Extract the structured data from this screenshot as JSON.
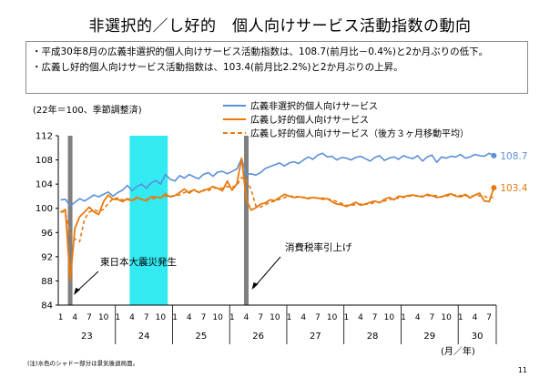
{
  "title": "非選択的／し好的　個人向けサービス活動指数の動向",
  "summary": [
    "・平成30年8月の広義非選択的個人向けサービス活動指数は、108.7(前月比－0.4%)と2か月ぶりの低下。",
    "・広義し好的個人向けサービス活動指数は、103.4(前月比2.2%)と2か月ぶりの上昇。"
  ],
  "footnote": "(注)水色のシャドー部分は景気後退局面。",
  "page_number": "11",
  "chart_data": {
    "type": "line",
    "note": "(22年＝100、季節調整済)",
    "ylim": [
      84,
      112
    ],
    "yticks": [
      "84",
      "88",
      "92",
      "96",
      "100",
      "104",
      "108",
      "112"
    ],
    "x_unit": "(月／年)",
    "year_labels": [
      "23",
      "24",
      "25",
      "26",
      "27",
      "28",
      "29",
      "30"
    ],
    "month_tick_labels": [
      "1",
      "4",
      "7",
      "10"
    ],
    "last_year_month_ticks": [
      "1",
      "4",
      "7"
    ],
    "x_start": "2011-01",
    "x_end": "2018-08",
    "legend": [
      {
        "name": "広義非選択的個人向けサービス",
        "color": "#5b8fd6",
        "style": "solid"
      },
      {
        "name": "広義し好的個人向けサービス",
        "color": "#e8790e",
        "style": "solid"
      },
      {
        "name": "広義し好的個人向けサービス（後方３ヶ月移動平均）",
        "color": "#e8790e",
        "style": "dashed"
      }
    ],
    "shading": [
      {
        "label": "recession",
        "color": "#33eaf2",
        "from": "2012-04",
        "to": "2012-11"
      },
      {
        "label": "東日本大震災発生",
        "color": "#808080",
        "at": "2011-03"
      },
      {
        "label": "消費税率引上げ",
        "color": "#808080",
        "at": "2014-04"
      }
    ],
    "annotations": [
      {
        "text": "東日本大震災発生",
        "arrow_to": "2011-03"
      },
      {
        "text": "消費税率引上げ",
        "arrow_to": "2014-04"
      }
    ],
    "end_labels": [
      {
        "series": "広義非選択的個人向けサービス",
        "text": "108.7",
        "color": "#5b8fd6"
      },
      {
        "series": "広義し好的個人向けサービス",
        "text": "103.4",
        "color": "#e8790e"
      }
    ],
    "series": [
      {
        "name": "広義非選択的個人向けサービス",
        "values": [
          101.4,
          101.5,
          100.4,
          101.0,
          101.6,
          101.2,
          101.7,
          102.2,
          101.9,
          102.3,
          102.7,
          102.0,
          102.6,
          103.0,
          103.8,
          102.9,
          103.6,
          104.0,
          103.3,
          104.2,
          104.6,
          104.0,
          105.6,
          104.8,
          104.5,
          105.4,
          105.0,
          105.6,
          105.2,
          104.9,
          105.6,
          105.9,
          105.3,
          106.0,
          106.1,
          105.7,
          106.1,
          106.5,
          108.2,
          105.6,
          105.7,
          105.5,
          105.9,
          106.6,
          106.9,
          107.2,
          107.5,
          107.0,
          107.5,
          107.7,
          107.4,
          108.0,
          108.5,
          108.1,
          108.8,
          109.1,
          108.5,
          108.6,
          108.0,
          108.4,
          108.3,
          108.0,
          108.4,
          108.6,
          108.2,
          107.8,
          108.4,
          108.7,
          107.9,
          108.3,
          108.5,
          108.1,
          108.7,
          108.4,
          108.2,
          108.7,
          107.8,
          108.5,
          108.8,
          107.6,
          108.5,
          108.3,
          108.6,
          108.5,
          108.9,
          108.3,
          108.5,
          108.9,
          108.7,
          108.6,
          109.1,
          108.7
        ]
      },
      {
        "name": "広義し好的個人向けサービス",
        "values": [
          99.3,
          99.8,
          88.1,
          96.7,
          98.6,
          99.4,
          100.2,
          99.4,
          99.0,
          101.1,
          102.2,
          101.5,
          101.5,
          101.1,
          101.6,
          101.3,
          101.8,
          101.5,
          101.2,
          101.9,
          101.9,
          101.7,
          102.4,
          101.9,
          102.1,
          102.6,
          103.2,
          102.5,
          103.1,
          102.6,
          103.0,
          103.2,
          103.6,
          103.3,
          102.9,
          104.5,
          103.0,
          104.0,
          108.3,
          101.5,
          99.7,
          100.1,
          100.7,
          100.9,
          101.4,
          101.3,
          101.8,
          102.3,
          102.0,
          101.8,
          101.9,
          101.8,
          101.6,
          101.8,
          101.7,
          101.5,
          101.6,
          101.1,
          100.7,
          100.6,
          100.3,
          100.6,
          101.0,
          100.5,
          100.7,
          101.0,
          101.2,
          100.9,
          101.5,
          101.8,
          101.4,
          102.0,
          101.9,
          102.1,
          102.2,
          102.0,
          101.9,
          102.3,
          102.1,
          101.8,
          101.9,
          102.2,
          102.4,
          102.0,
          101.9,
          102.3,
          101.7,
          102.2,
          102.5,
          101.2,
          101.1,
          103.4
        ]
      },
      {
        "name": "広義し好的個人向けサービス（後方３ヶ月移動平均）",
        "values": [
          99.5,
          99.3,
          95.7,
          94.9,
          94.5,
          98.2,
          99.4,
          99.7,
          99.5,
          99.8,
          100.8,
          101.6,
          101.7,
          101.4,
          101.4,
          101.3,
          101.6,
          101.5,
          101.5,
          101.5,
          101.7,
          101.8,
          102.0,
          102.0,
          102.1,
          102.2,
          102.6,
          102.8,
          102.9,
          102.7,
          102.9,
          102.9,
          103.3,
          103.4,
          103.3,
          103.6,
          103.5,
          103.8,
          105.1,
          104.6,
          103.2,
          100.4,
          100.2,
          100.6,
          101.0,
          101.2,
          101.5,
          101.8,
          102.0,
          102.0,
          101.9,
          101.8,
          101.8,
          101.7,
          101.7,
          101.7,
          101.6,
          101.4,
          101.1,
          100.8,
          100.5,
          100.5,
          100.6,
          100.7,
          100.7,
          100.7,
          101.0,
          101.0,
          101.2,
          101.4,
          101.6,
          101.7,
          101.8,
          102.0,
          102.1,
          102.1,
          102.0,
          102.1,
          102.1,
          102.1,
          101.9,
          102.0,
          102.2,
          102.2,
          102.1,
          102.1,
          102.0,
          102.1,
          102.1,
          102.0,
          101.6,
          101.9
        ]
      }
    ]
  }
}
